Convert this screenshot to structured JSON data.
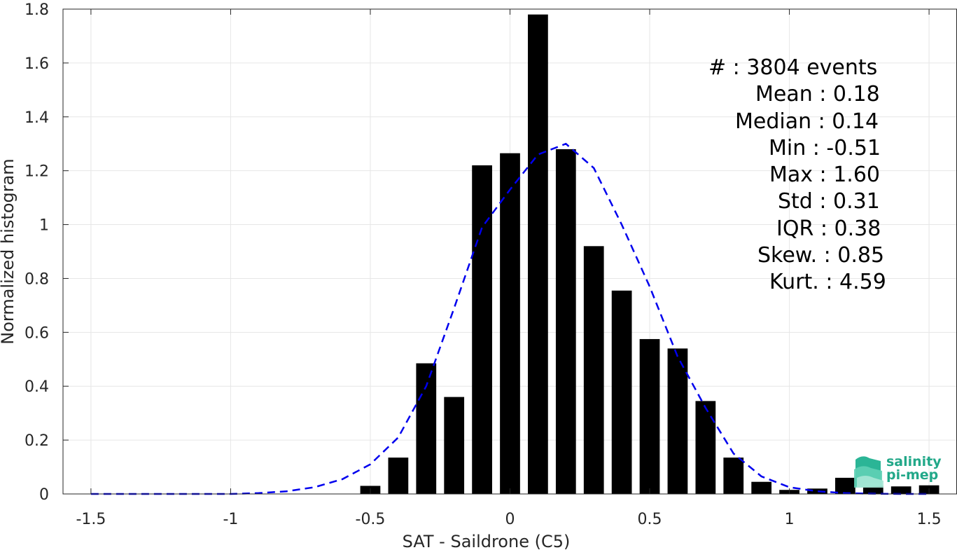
{
  "chart_data": {
    "type": "bar",
    "xlabel": "SAT - Saildrone (C5)",
    "ylabel": "Normalized histogram",
    "xlim": [
      -1.6,
      1.6
    ],
    "ylim": [
      0,
      1.8
    ],
    "x_ticks": [
      "-1.5",
      "-1",
      "-0.5",
      "0",
      "0.5",
      "1",
      "1.5"
    ],
    "y_ticks": [
      "0",
      "0.2",
      "0.4",
      "0.6",
      "0.8",
      "1",
      "1.2",
      "1.4",
      "1.6",
      "1.8"
    ],
    "grid": true,
    "bars": {
      "x": [
        -0.5,
        -0.4,
        -0.3,
        -0.2,
        -0.1,
        0.0,
        0.1,
        0.2,
        0.3,
        0.4,
        0.5,
        0.6,
        0.7,
        0.8,
        0.9,
        1.0,
        1.1,
        1.2,
        1.3,
        1.4,
        1.5
      ],
      "values": [
        0.03,
        0.135,
        0.485,
        0.36,
        1.22,
        1.265,
        1.78,
        1.28,
        0.92,
        0.755,
        0.575,
        0.54,
        0.345,
        0.135,
        0.045,
        0.015,
        0.02,
        0.06,
        0.03,
        0.028,
        0.032
      ],
      "color": "#000000"
    },
    "fit_curve": {
      "style": "dashed",
      "color": "#0000ee",
      "x": [
        -1.5,
        -1.4,
        -1.3,
        -1.2,
        -1.1,
        -1.0,
        -0.9,
        -0.8,
        -0.7,
        -0.6,
        -0.5,
        -0.4,
        -0.3,
        -0.2,
        -0.1,
        0.0,
        0.1,
        0.2,
        0.3,
        0.4,
        0.5,
        0.6,
        0.7,
        0.8,
        0.9,
        1.0,
        1.1,
        1.2,
        1.3,
        1.4,
        1.5
      ],
      "y": [
        0.0,
        0.0,
        0.0,
        0.0,
        0.0,
        0.0,
        0.003,
        0.01,
        0.025,
        0.055,
        0.11,
        0.21,
        0.4,
        0.69,
        0.99,
        1.13,
        1.26,
        1.3,
        1.21,
        1.0,
        0.77,
        0.51,
        0.32,
        0.15,
        0.065,
        0.025,
        0.01,
        0.003,
        0.001,
        0.0,
        0.0
      ]
    },
    "stats": [
      "#  : 3804 events",
      "Mean : 0.18",
      "Median : 0.14",
      "Min : -0.51",
      "Max : 1.60",
      "Std : 0.31",
      "IQR : 0.38",
      "Skew. : 0.85",
      "Kurt. : 4.59"
    ]
  },
  "logo": {
    "line1": "salinity",
    "line2": "pi-mep",
    "color": "#22a889"
  }
}
